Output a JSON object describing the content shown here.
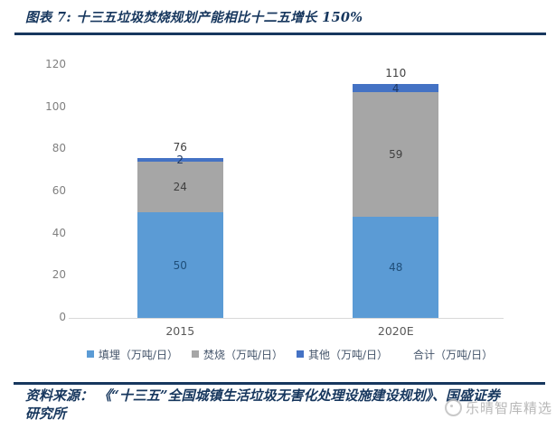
{
  "header": {
    "title": "图表 7: 十三五垃圾焚烧规划产能相比十二五增长 150%"
  },
  "chart_data": {
    "type": "bar",
    "stacked": true,
    "title": "十三五垃圾焚烧规划产能相比十二五增长 150%",
    "categories": [
      "2015",
      "2020E"
    ],
    "series": [
      {
        "name": "填埋（万吨/日）",
        "color": "#5B9BD5",
        "label_color": "#1F4E79",
        "values": [
          50,
          48
        ]
      },
      {
        "name": "焚烧（万吨/日）",
        "color": "#A6A6A6",
        "label_color": "#404040",
        "values": [
          24,
          59
        ]
      },
      {
        "name": "其他（万吨/日）",
        "color": "#4472C4",
        "label_color": "#1F3864",
        "values": [
          2,
          4
        ]
      }
    ],
    "totals": {
      "name": "合计（万吨/日）",
      "values": [
        76,
        110
      ],
      "label_color": "#404040"
    },
    "xlabel": "",
    "ylabel": "",
    "ylim": [
      0,
      120
    ],
    "yticks": [
      0,
      20,
      40,
      60,
      80,
      100,
      120
    ],
    "grid": false,
    "legend_position": "bottom"
  },
  "footer": {
    "source": "资料来源： 《“十三五”全国城镇生活垃圾无害化处理设施建设规划》、国盛证券研究所"
  },
  "watermark": {
    "text": "乐晴智库精选"
  },
  "colors": {
    "accent_rule": "#17375E",
    "title_text": "#17375E",
    "axis_text": "#808080",
    "baseline": "#D9D9D9"
  }
}
